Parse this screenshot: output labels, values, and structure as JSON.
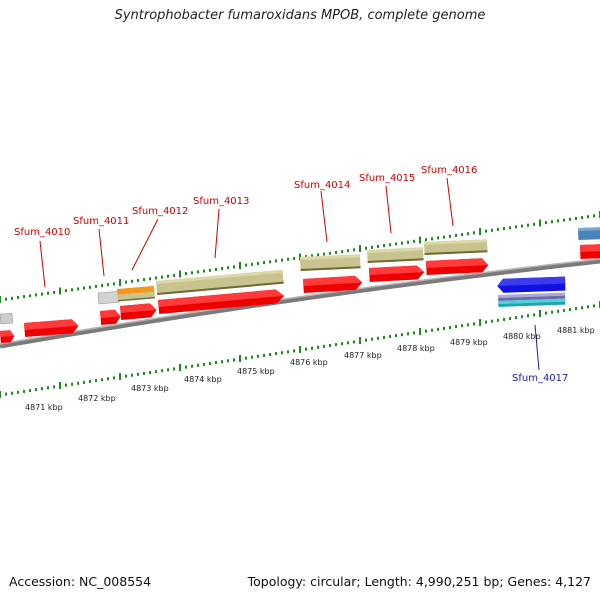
{
  "title": "Syntrophobacter fumaroxidans MPOB, complete genome",
  "accession_text": "Accession: NC_008554",
  "summary_text": "Topology: circular; Length: 4,990,251 bp; Genes: 4,127",
  "colors": {
    "forward_gene": "#ee0000",
    "reverse_gene": "#1111dd",
    "feature_khaki": "#c9c48f",
    "feature_orange": "#f39a1c",
    "feature_gray": "#cccccc",
    "feature_steelblue": "#4a84b6",
    "backbone": "#888888",
    "tick": "#1f8a1f",
    "forward_label": "#cc0000",
    "reverse_label": "#1a1ab0"
  },
  "axis": {
    "kbp_labels": [
      "4871 kbp",
      "4872 kbp",
      "4873 kbp",
      "4874 kbp",
      "4875 kbp",
      "4876 kbp",
      "4877 kbp",
      "4878 kbp",
      "4879 kbp",
      "4880 kbp",
      "4881 kbp"
    ]
  },
  "gene_labels": [
    {
      "name": "Sfum_4010",
      "strand": "forward"
    },
    {
      "name": "Sfum_4011",
      "strand": "forward"
    },
    {
      "name": "Sfum_4012",
      "strand": "forward"
    },
    {
      "name": "Sfum_4013",
      "strand": "forward"
    },
    {
      "name": "Sfum_4014",
      "strand": "forward"
    },
    {
      "name": "Sfum_4015",
      "strand": "forward"
    },
    {
      "name": "Sfum_4016",
      "strand": "forward"
    },
    {
      "name": "Sfum_4017",
      "strand": "reverse"
    }
  ]
}
